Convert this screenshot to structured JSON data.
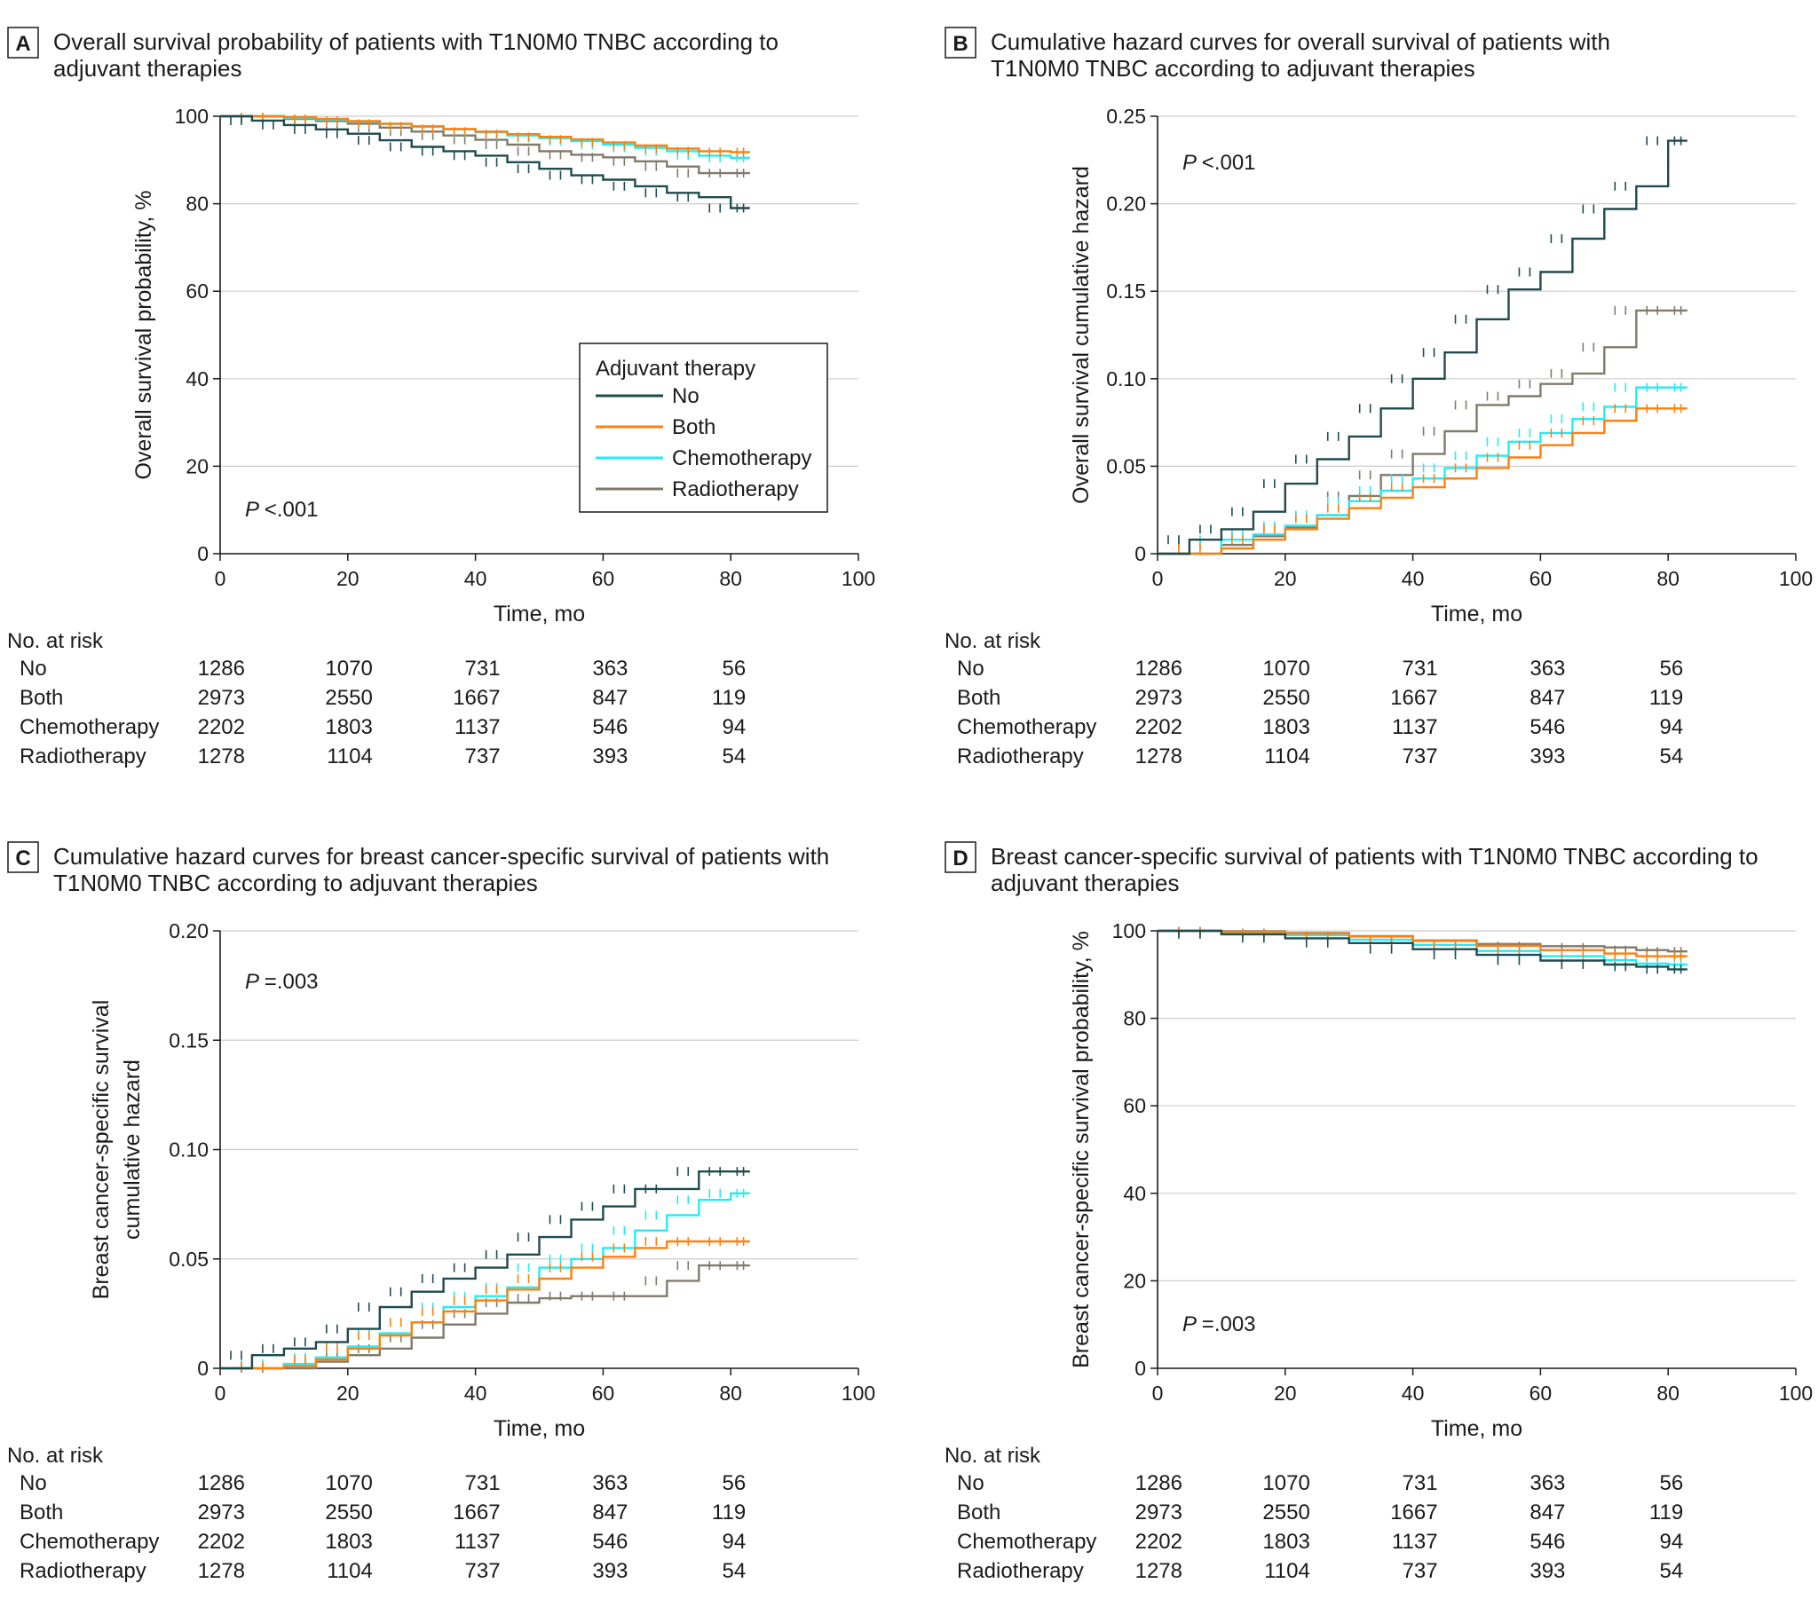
{
  "colors": {
    "No": "#1f4a4f",
    "Both": "#ff7f0e",
    "Chemotherapy": "#22ecf5",
    "Radiotherapy": "#807a6a",
    "grid": "#cccccc",
    "axis": "#1a1a1a"
  },
  "legend": {
    "title": "Adjuvant therapy",
    "items": [
      "No",
      "Both",
      "Chemotherapy",
      "Radiotherapy"
    ]
  },
  "risk_table": {
    "title": "No. at risk",
    "times": [
      0,
      20,
      40,
      60,
      80
    ],
    "rows": [
      {
        "label": "No",
        "values": [
          "1286",
          "1070",
          "731",
          "363",
          "56"
        ]
      },
      {
        "label": "Both",
        "values": [
          "2973",
          "2550",
          "1667",
          "847",
          "119"
        ]
      },
      {
        "label": "Chemotherapy",
        "values": [
          "2202",
          "1803",
          "1137",
          "546",
          "94"
        ]
      },
      {
        "label": "Radiotherapy",
        "values": [
          "1278",
          "1104",
          "737",
          "393",
          "54"
        ]
      }
    ]
  },
  "chart_data": [
    {
      "panel": "A",
      "type": "line",
      "title": [
        "Overall survival probability of patients with T1N0M0 TNBC according to",
        "adjuvant therapies"
      ],
      "xlabel": "Time, mo",
      "ylabel": [
        "Overall survival probability, %"
      ],
      "xlim": [
        0,
        100
      ],
      "ylim": [
        0,
        100
      ],
      "xticks": [
        0,
        20,
        40,
        60,
        80,
        100
      ],
      "yticks": [
        0,
        20,
        40,
        60,
        80,
        100
      ],
      "ytick_labels": [
        "0",
        "20",
        "40",
        "60",
        "80",
        "100"
      ],
      "grid": true,
      "p_value": "<.001",
      "show_legend": true,
      "series": [
        {
          "name": "No",
          "x": [
            0,
            5,
            10,
            15,
            20,
            25,
            30,
            35,
            40,
            45,
            50,
            55,
            60,
            65,
            70,
            75,
            80,
            83
          ],
          "y": [
            100,
            99,
            98,
            97,
            96,
            94.5,
            93,
            92,
            91,
            89.5,
            88,
            86.5,
            85.5,
            84,
            82.5,
            81.5,
            79,
            79
          ]
        },
        {
          "name": "Both",
          "x": [
            0,
            10,
            15,
            20,
            25,
            30,
            35,
            40,
            45,
            50,
            55,
            60,
            65,
            70,
            75,
            80,
            83
          ],
          "y": [
            100,
            99.8,
            99.4,
            98.9,
            98.3,
            97.7,
            97.1,
            96.5,
            95.9,
            95.3,
            94.7,
            94,
            93.3,
            92.6,
            92,
            91.8,
            91.8
          ]
        },
        {
          "name": "Chemotherapy",
          "x": [
            0,
            10,
            15,
            20,
            25,
            30,
            35,
            40,
            45,
            50,
            55,
            60,
            65,
            70,
            75,
            80,
            83
          ],
          "y": [
            100,
            99.6,
            99.2,
            98.8,
            98.2,
            97.6,
            97,
            96.3,
            95.6,
            95,
            94.3,
            93.5,
            92.8,
            92,
            91,
            90.5,
            90.5
          ]
        },
        {
          "name": "Radiotherapy",
          "x": [
            0,
            10,
            15,
            20,
            25,
            30,
            35,
            40,
            45,
            50,
            55,
            60,
            65,
            70,
            75,
            80,
            83
          ],
          "y": [
            100,
            99.4,
            98.9,
            98.3,
            97.4,
            96.5,
            95.6,
            94.6,
            93.5,
            92,
            91.2,
            90.6,
            89.7,
            88.5,
            87,
            87,
            87
          ]
        }
      ]
    },
    {
      "panel": "B",
      "type": "line",
      "title": [
        "Cumulative hazard curves for overall survival of patients with",
        "T1N0M0 TNBC according to adjuvant therapies"
      ],
      "xlabel": "Time, mo",
      "ylabel": [
        "Overall survival cumulative hazard"
      ],
      "xlim": [
        0,
        100
      ],
      "ylim": [
        0,
        0.25
      ],
      "xticks": [
        0,
        20,
        40,
        60,
        80,
        100
      ],
      "yticks": [
        0,
        0.05,
        0.1,
        0.15,
        0.2,
        0.25
      ],
      "ytick_labels": [
        "0",
        "0.05",
        "0.10",
        "0.15",
        "0.20",
        "0.25"
      ],
      "grid": true,
      "p_value": "<.001",
      "show_legend": false,
      "series": [
        {
          "name": "No",
          "x": [
            0,
            5,
            10,
            15,
            20,
            25,
            30,
            35,
            40,
            45,
            50,
            55,
            60,
            65,
            70,
            75,
            80,
            83
          ],
          "y": [
            0,
            0.008,
            0.014,
            0.024,
            0.04,
            0.054,
            0.067,
            0.083,
            0.1,
            0.115,
            0.134,
            0.151,
            0.161,
            0.18,
            0.197,
            0.21,
            0.236,
            0.236
          ]
        },
        {
          "name": "Both",
          "x": [
            0,
            10,
            15,
            20,
            25,
            30,
            35,
            40,
            45,
            50,
            55,
            60,
            65,
            70,
            75,
            80,
            83
          ],
          "y": [
            0,
            0.003,
            0.008,
            0.014,
            0.02,
            0.026,
            0.032,
            0.038,
            0.043,
            0.049,
            0.055,
            0.062,
            0.069,
            0.076,
            0.083,
            0.083,
            0.083
          ]
        },
        {
          "name": "Chemotherapy",
          "x": [
            0,
            10,
            15,
            20,
            25,
            30,
            35,
            40,
            45,
            50,
            55,
            60,
            65,
            70,
            75,
            80,
            83
          ],
          "y": [
            0,
            0.008,
            0.011,
            0.016,
            0.022,
            0.03,
            0.036,
            0.043,
            0.049,
            0.056,
            0.064,
            0.069,
            0.077,
            0.084,
            0.095,
            0.095,
            0.095
          ]
        },
        {
          "name": "Radiotherapy",
          "x": [
            0,
            10,
            15,
            20,
            25,
            30,
            35,
            40,
            45,
            50,
            55,
            60,
            65,
            70,
            75,
            80,
            83
          ],
          "y": [
            0,
            0.005,
            0.01,
            0.015,
            0.022,
            0.033,
            0.045,
            0.057,
            0.07,
            0.085,
            0.09,
            0.097,
            0.103,
            0.118,
            0.139,
            0.139,
            0.139
          ]
        }
      ]
    },
    {
      "panel": "C",
      "type": "line",
      "title": [
        "Cumulative hazard curves for breast cancer-specific survival of patients with",
        "T1N0M0 TNBC according to adjuvant therapies"
      ],
      "xlabel": "Time, mo",
      "ylabel": [
        "Breast cancer-specific survival",
        "cumulative hazard"
      ],
      "xlim": [
        0,
        100
      ],
      "ylim": [
        0,
        0.2
      ],
      "xticks": [
        0,
        20,
        40,
        60,
        80,
        100
      ],
      "yticks": [
        0,
        0.05,
        0.1,
        0.15,
        0.2
      ],
      "ytick_labels": [
        "0",
        "0.05",
        "0.10",
        "0.15",
        "0.20"
      ],
      "grid": true,
      "p_value": "=.003",
      "show_legend": false,
      "series": [
        {
          "name": "No",
          "x": [
            0,
            5,
            10,
            15,
            20,
            25,
            30,
            35,
            40,
            45,
            50,
            55,
            60,
            65,
            70,
            75,
            80,
            83
          ],
          "y": [
            0,
            0.006,
            0.009,
            0.012,
            0.018,
            0.028,
            0.035,
            0.041,
            0.046,
            0.052,
            0.06,
            0.068,
            0.074,
            0.082,
            0.082,
            0.09,
            0.09,
            0.09
          ]
        },
        {
          "name": "Both",
          "x": [
            0,
            10,
            15,
            20,
            25,
            30,
            35,
            40,
            45,
            50,
            55,
            60,
            65,
            70,
            75,
            80,
            83
          ],
          "y": [
            0,
            0.001,
            0.004,
            0.009,
            0.015,
            0.021,
            0.026,
            0.031,
            0.036,
            0.041,
            0.046,
            0.051,
            0.055,
            0.058,
            0.058,
            0.058,
            0.058
          ]
        },
        {
          "name": "Chemotherapy",
          "x": [
            0,
            10,
            15,
            20,
            25,
            30,
            35,
            40,
            45,
            50,
            55,
            60,
            65,
            70,
            75,
            80,
            83
          ],
          "y": [
            0,
            0.002,
            0.005,
            0.01,
            0.016,
            0.021,
            0.028,
            0.033,
            0.037,
            0.046,
            0.05,
            0.055,
            0.063,
            0.07,
            0.077,
            0.08,
            0.08
          ]
        },
        {
          "name": "Radiotherapy",
          "x": [
            0,
            10,
            15,
            20,
            25,
            30,
            35,
            40,
            45,
            50,
            55,
            60,
            65,
            70,
            75,
            80,
            83
          ],
          "y": [
            0,
            0,
            0.003,
            0.006,
            0.009,
            0.014,
            0.02,
            0.025,
            0.03,
            0.032,
            0.033,
            0.033,
            0.033,
            0.04,
            0.047,
            0.047,
            0.047
          ]
        }
      ]
    },
    {
      "panel": "D",
      "type": "line",
      "title": [
        "Breast cancer-specific survival of patients with T1N0M0 TNBC according to",
        "adjuvant therapies"
      ],
      "xlabel": "Time, mo",
      "ylabel": [
        "Breast cancer-specific survival probability, %"
      ],
      "xlim": [
        0,
        100
      ],
      "ylim": [
        0,
        100
      ],
      "xticks": [
        0,
        20,
        40,
        60,
        80,
        100
      ],
      "yticks": [
        0,
        20,
        40,
        60,
        80,
        100
      ],
      "ytick_labels": [
        "0",
        "20",
        "40",
        "60",
        "80",
        "100"
      ],
      "grid": true,
      "p_value": "=.003",
      "show_legend": false,
      "series": [
        {
          "name": "No",
          "x": [
            0,
            10,
            20,
            30,
            40,
            50,
            60,
            70,
            75,
            80,
            83
          ],
          "y": [
            100,
            99.2,
            98.3,
            97.2,
            95.8,
            94.5,
            93.2,
            92.3,
            91.8,
            91.2,
            91.2
          ]
        },
        {
          "name": "Both",
          "x": [
            0,
            10,
            20,
            30,
            40,
            50,
            60,
            70,
            75,
            80,
            83
          ],
          "y": [
            100,
            99.8,
            99.4,
            98.7,
            97.7,
            96.6,
            95.6,
            94.8,
            94.2,
            94.2,
            94.2
          ]
        },
        {
          "name": "Chemotherapy",
          "x": [
            0,
            10,
            20,
            30,
            40,
            50,
            60,
            70,
            75,
            80,
            83
          ],
          "y": [
            100,
            99.6,
            99,
            98,
            96.8,
            95.4,
            94.2,
            93.3,
            92.5,
            92.3,
            92.3
          ]
        },
        {
          "name": "Radiotherapy",
          "x": [
            0,
            10,
            20,
            30,
            40,
            50,
            60,
            70,
            75,
            80,
            83
          ],
          "y": [
            100,
            99.9,
            99.5,
            98.8,
            97.8,
            97,
            96.5,
            96.2,
            95.6,
            95.3,
            95.3
          ]
        }
      ]
    }
  ]
}
